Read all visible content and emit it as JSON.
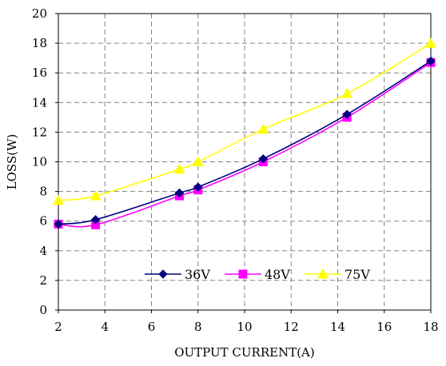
{
  "chart_data": {
    "type": "line",
    "xlabel": "OUTPUT CURRENT(A)",
    "ylabel": "LOSS(W)",
    "xlim": [
      2,
      18
    ],
    "ylim": [
      0,
      20
    ],
    "x_ticks": [
      2,
      4,
      6,
      8,
      10,
      12,
      14,
      16,
      18
    ],
    "y_ticks": [
      0,
      2,
      4,
      6,
      8,
      10,
      12,
      14,
      16,
      18,
      20
    ],
    "grid": true,
    "grid_style": "dashed",
    "legend_position": "inside-bottom-center",
    "series": [
      {
        "name": "36V",
        "color": "#000080",
        "marker": "diamond",
        "x": [
          2,
          3.6,
          7.2,
          8,
          10.8,
          14.4,
          18
        ],
        "y": [
          5.8,
          6.1,
          7.9,
          8.3,
          10.2,
          13.2,
          16.8
        ]
      },
      {
        "name": "48V",
        "color": "#ff00ff",
        "marker": "square",
        "x": [
          2,
          3.6,
          7.2,
          8,
          10.8,
          14.4,
          18
        ],
        "y": [
          5.8,
          5.75,
          7.7,
          8.1,
          10.0,
          13.0,
          16.7
        ]
      },
      {
        "name": "75V",
        "color": "#ffff00",
        "marker": "triangle",
        "x": [
          2,
          3.6,
          7.2,
          8,
          10.8,
          14.4,
          18
        ],
        "y": [
          7.4,
          7.7,
          9.5,
          10.0,
          12.2,
          14.6,
          18.0
        ]
      }
    ]
  }
}
